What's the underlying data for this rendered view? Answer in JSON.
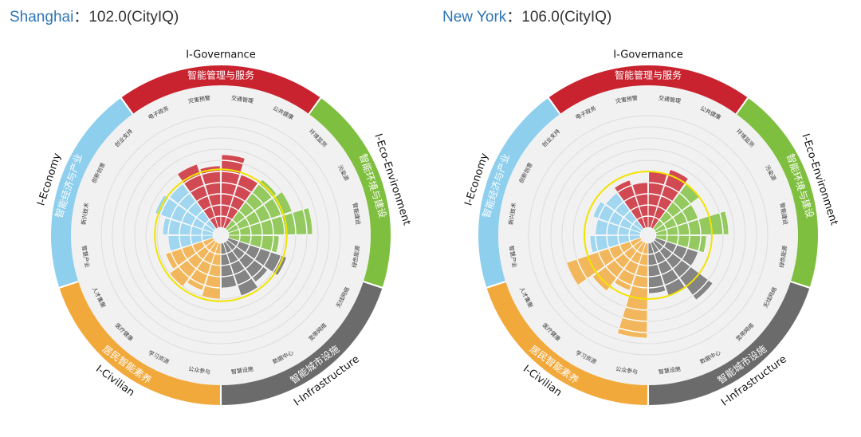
{
  "titles": [
    {
      "city": "Shanghai",
      "sep": "：",
      "score": "102.0(CityIQ)"
    },
    {
      "city": "New York",
      "sep": "：",
      "score": "106.0(CityIQ)"
    }
  ],
  "chart_data": [
    {
      "type": "radial-bar",
      "title": "Shanghai：102.0(CityIQ)",
      "city": "Shanghai",
      "value_scale": "rings 1–10",
      "target_ring": 5.2,
      "categories": [
        {
          "name": "I-Governance",
          "cn": "智能管理与服务",
          "color": "#c9232f",
          "items": [
            {
              "label": "电子政务",
              "value": 6.0
            },
            {
              "label": "灾害预警",
              "value": 5.5
            },
            {
              "label": "交通管理",
              "value": 6.5
            },
            {
              "label": "公共健康",
              "value": 5.0
            }
          ]
        },
        {
          "name": "I-Eco-Environment",
          "cn": "智能环境与建设",
          "color": "#7fbf3f",
          "items": [
            {
              "label": "环境监测",
              "value": 5.5
            },
            {
              "label": "污染源",
              "value": 6.0
            },
            {
              "label": "智能建设",
              "value": 7.5
            },
            {
              "label": "绿色能源",
              "value": 4.5
            }
          ]
        },
        {
          "name": "I-Infrastructure",
          "cn": "智能城市设施",
          "color": "#6b6b6b",
          "items": [
            {
              "label": "无线网络",
              "value": 5.5
            },
            {
              "label": "宽带网络",
              "value": 4.5
            },
            {
              "label": "数据中心",
              "value": 5.0
            },
            {
              "label": "智慧设施",
              "value": 4.0
            }
          ]
        },
        {
          "name": "I-Civilian",
          "cn": "居民智能素养",
          "color": "#f2a93b",
          "items": [
            {
              "label": "公众参与",
              "value": 5.0
            },
            {
              "label": "学习资源",
              "value": 4.5
            },
            {
              "label": "医疗健康",
              "value": 5.0
            },
            {
              "label": "人才集聚",
              "value": 4.5
            }
          ]
        },
        {
          "name": "I-Economy",
          "cn": "智能经济与产业",
          "color": "#8ecfee",
          "items": [
            {
              "label": "智慧产业",
              "value": 4.0
            },
            {
              "label": "新兴技术",
              "value": 4.5
            },
            {
              "label": "创新创意",
              "value": 5.5
            },
            {
              "label": "创业支持",
              "value": 5.0
            }
          ]
        }
      ]
    },
    {
      "type": "radial-bar",
      "title": "New York：106.0(CityIQ)",
      "city": "New York",
      "value_scale": "rings 1–10",
      "target_ring": 5.0,
      "categories": [
        {
          "name": "I-Governance",
          "cn": "智能管理与服务",
          "color": "#c9232f",
          "items": [
            {
              "label": "电子政务",
              "value": 4.5
            },
            {
              "label": "灾害预警",
              "value": 4.0
            },
            {
              "label": "交通管理",
              "value": 5.0
            },
            {
              "label": "公共健康",
              "value": 5.5
            }
          ]
        },
        {
          "name": "I-Eco-Environment",
          "cn": "智能环境与建设",
          "color": "#7fbf3f",
          "items": [
            {
              "label": "环境监测",
              "value": 5.0
            },
            {
              "label": "污染源",
              "value": 4.0
            },
            {
              "label": "智能建设",
              "value": 6.5
            },
            {
              "label": "绿色能源",
              "value": 4.5
            }
          ]
        },
        {
          "name": "I-Infrastructure",
          "cn": "智能城市设施",
          "color": "#6b6b6b",
          "items": [
            {
              "label": "无线网络",
              "value": 4.0
            },
            {
              "label": "宽带网络",
              "value": 6.5
            },
            {
              "label": "数据中心",
              "value": 5.0
            },
            {
              "label": "智慧设施",
              "value": 4.5
            }
          ]
        },
        {
          "name": "I-Civilian",
          "cn": "居民智能素养",
          "color": "#f2a93b",
          "items": [
            {
              "label": "公众参与",
              "value": 8.5
            },
            {
              "label": "学习资源",
              "value": 4.5
            },
            {
              "label": "医疗健康",
              "value": 5.5
            },
            {
              "label": "人才集聚",
              "value": 7.0
            }
          ]
        },
        {
          "name": "I-Economy",
          "cn": "智能经济与产业",
          "color": "#8ecfee",
          "items": [
            {
              "label": "智慧产业",
              "value": 4.5
            },
            {
              "label": "新兴技术",
              "value": 4.0
            },
            {
              "label": "创新创意",
              "value": 4.5
            },
            {
              "label": "创业支持",
              "value": 4.0
            }
          ]
        }
      ]
    }
  ]
}
